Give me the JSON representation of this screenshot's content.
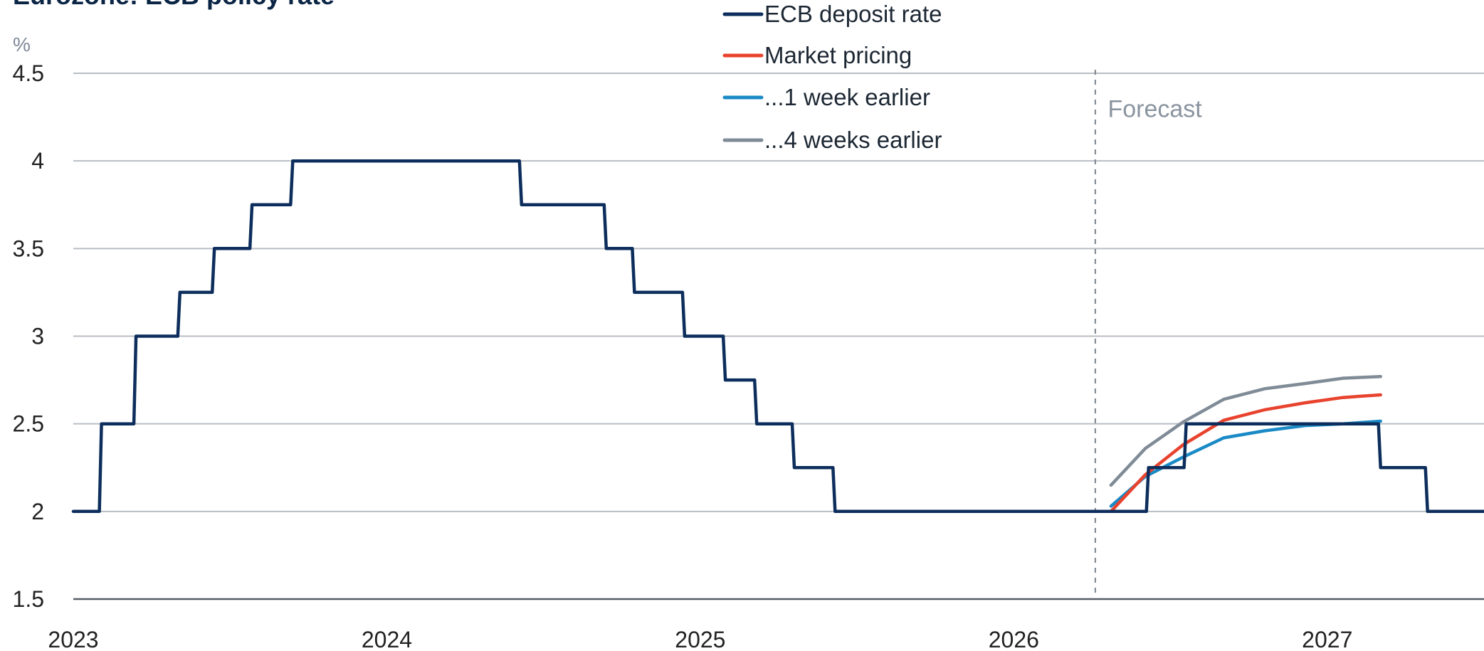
{
  "chart_data": {
    "type": "line",
    "title": "Eurozone: ECB policy rate",
    "ylabel": "%",
    "xlabel": "",
    "ylim": [
      1.5,
      4.5
    ],
    "yticks": [
      1.5,
      2,
      2.5,
      3,
      3.5,
      4,
      4.5
    ],
    "ytick_labels": [
      "1.5",
      "2",
      "2.5",
      "3",
      "3.5",
      "4",
      "4.5"
    ],
    "xlim": [
      2023.0,
      2027.5
    ],
    "xticks": [
      2023,
      2024,
      2025,
      2026,
      2027
    ],
    "xtick_labels": [
      "2023",
      "2024",
      "2025",
      "2026",
      "2027"
    ],
    "grid": true,
    "legend_position": "top-center",
    "forecast_start": 2026.26,
    "annotations": [
      {
        "text": "Forecast",
        "x": 2026.3,
        "y": 4.3
      }
    ],
    "series": [
      {
        "name": "ECB deposit rate",
        "color": "#0d2e5c",
        "step": true,
        "points": [
          [
            2023.0,
            2.0
          ],
          [
            2023.09,
            2.5
          ],
          [
            2023.2,
            3.0
          ],
          [
            2023.34,
            3.25
          ],
          [
            2023.45,
            3.5
          ],
          [
            2023.57,
            3.75
          ],
          [
            2023.7,
            4.0
          ],
          [
            2024.43,
            3.75
          ],
          [
            2024.7,
            3.5
          ],
          [
            2024.79,
            3.25
          ],
          [
            2024.95,
            3.0
          ],
          [
            2025.08,
            2.75
          ],
          [
            2025.18,
            2.5
          ],
          [
            2025.3,
            2.25
          ],
          [
            2025.43,
            2.0
          ],
          [
            2026.43,
            2.25
          ],
          [
            2026.55,
            2.5
          ],
          [
            2027.17,
            2.25
          ],
          [
            2027.32,
            2.0
          ],
          [
            2027.5,
            2.0
          ]
        ]
      },
      {
        "name": "Market pricing",
        "color": "#e8432e",
        "step": false,
        "points": [
          [
            2026.31,
            2.0
          ],
          [
            2026.42,
            2.21
          ],
          [
            2026.54,
            2.38
          ],
          [
            2026.67,
            2.52
          ],
          [
            2026.8,
            2.58
          ],
          [
            2026.93,
            2.62
          ],
          [
            2027.05,
            2.65
          ],
          [
            2027.17,
            2.665
          ]
        ]
      },
      {
        "name": "...1 week earlier",
        "color": "#1a8ac6",
        "step": false,
        "points": [
          [
            2026.31,
            2.03
          ],
          [
            2026.42,
            2.2
          ],
          [
            2026.54,
            2.31
          ],
          [
            2026.67,
            2.42
          ],
          [
            2026.8,
            2.46
          ],
          [
            2026.93,
            2.49
          ],
          [
            2027.05,
            2.5
          ],
          [
            2027.17,
            2.515
          ]
        ]
      },
      {
        "name": "...4 weeks earlier",
        "color": "#7f8b96",
        "step": false,
        "points": [
          [
            2026.31,
            2.15
          ],
          [
            2026.42,
            2.36
          ],
          [
            2026.54,
            2.51
          ],
          [
            2026.67,
            2.64
          ],
          [
            2026.8,
            2.7
          ],
          [
            2026.93,
            2.73
          ],
          [
            2027.05,
            2.76
          ],
          [
            2027.17,
            2.77
          ]
        ]
      }
    ]
  }
}
